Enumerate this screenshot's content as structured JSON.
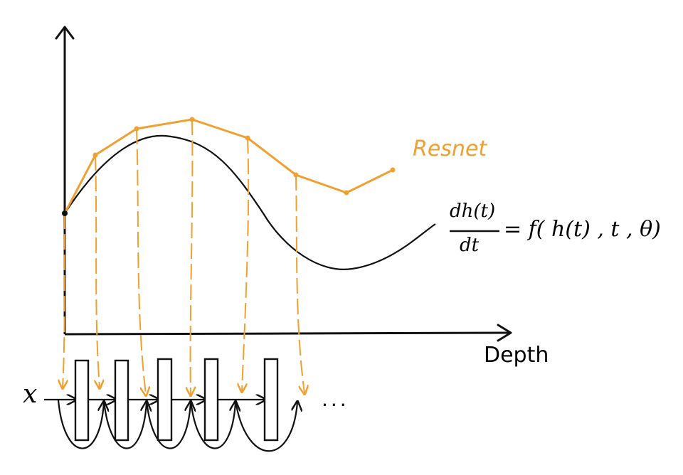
{
  "labels": {
    "resnet": "Resnet",
    "ode_numerator": "dh(t)",
    "ode_denominator": "dt",
    "ode_rhs": "= f( h(t) , t , θ)",
    "x_axis": "Depth",
    "input": "x",
    "ellipsis": "..."
  },
  "colors": {
    "ink": "#111111",
    "accent": "#F0A030"
  },
  "resnet_blocks": 5,
  "icons": [
    "arrow-head-icon"
  ]
}
